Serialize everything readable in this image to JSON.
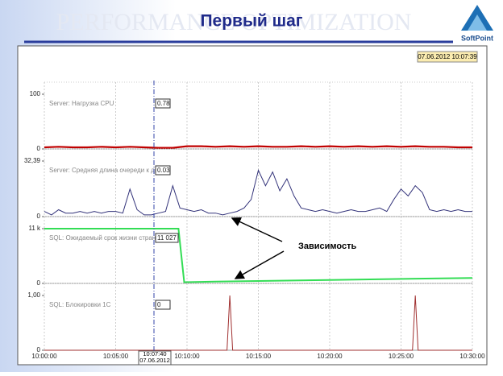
{
  "title": "Первый шаг",
  "watermark": "PERFORMANCE OPTIMIZATION",
  "logo": "SoftPoint",
  "timestamp": "07.06.2012 10:07:39",
  "cursor": {
    "time": "10:07:40",
    "date": "07.06.2012"
  },
  "annotation": "Зависимость",
  "chart_data": [
    {
      "type": "line",
      "xlim": [
        0,
        30
      ],
      "ylim": [
        0,
        100
      ],
      "yticks": [
        0,
        100
      ],
      "cursor_label": "0.78",
      "x": [
        0,
        1,
        2,
        3,
        4,
        5,
        6,
        7,
        8,
        9,
        10,
        11,
        12,
        13,
        14,
        15,
        16,
        17,
        18,
        19,
        20,
        21,
        22,
        23,
        24,
        25,
        26,
        27,
        28,
        29,
        30
      ],
      "series": [
        {
          "name": "Server: Нагрузка CPU",
          "color": "#c00000",
          "values": [
            3,
            4,
            3,
            3,
            4,
            3,
            4,
            3,
            2,
            2,
            5,
            5,
            4,
            5,
            4,
            5,
            4,
            4,
            5,
            4,
            5,
            4,
            5,
            4,
            5,
            4,
            5,
            4,
            4,
            3,
            3
          ]
        }
      ]
    },
    {
      "type": "line",
      "xlim": [
        0,
        30
      ],
      "ylim": [
        0,
        32.39
      ],
      "yticks": [
        0,
        {
          "value": 32.39,
          "label": "32,39"
        }
      ],
      "cursor_label": "0.03",
      "x": [
        0,
        0.5,
        1,
        1.5,
        2,
        2.5,
        3,
        3.5,
        4,
        4.5,
        5,
        5.5,
        6,
        6.5,
        7,
        7.5,
        8,
        8.5,
        9,
        9.5,
        10,
        10.5,
        11,
        11.5,
        12,
        12.5,
        13,
        13.5,
        14,
        14.5,
        15,
        15.5,
        16,
        16.5,
        17,
        17.5,
        18,
        18.5,
        19,
        19.5,
        20,
        20.5,
        21,
        21.5,
        22,
        22.5,
        23,
        23.5,
        24,
        24.5,
        25,
        25.5,
        26,
        26.5,
        27,
        27.5,
        28,
        28.5,
        29,
        29.5,
        30
      ],
      "series": [
        {
          "name": "Server: Средняя длина очереди к диску",
          "color": "#33337a",
          "values": [
            3,
            1,
            4,
            2,
            2,
            3,
            2,
            3,
            2,
            3,
            3,
            2,
            16,
            4,
            1,
            1,
            2,
            3,
            18,
            5,
            4,
            3,
            4,
            2,
            2,
            1,
            2,
            3,
            5,
            10,
            27,
            18,
            26,
            15,
            22,
            12,
            5,
            4,
            3,
            4,
            3,
            2,
            3,
            4,
            3,
            3,
            4,
            5,
            3,
            10,
            16,
            12,
            18,
            14,
            4,
            3,
            4,
            3,
            4,
            3,
            3
          ]
        }
      ]
    },
    {
      "type": "line",
      "xlim": [
        0,
        30
      ],
      "ylim": [
        0,
        11000
      ],
      "yticks": [
        0,
        {
          "value": 11000,
          "label": "11 k"
        }
      ],
      "cursor_label": "11 027",
      "x": [
        0,
        9.4,
        9.8,
        12,
        20,
        30
      ],
      "series": [
        {
          "name": "SQL: Ожидаемый срок жизни страницы",
          "color": "#33dd55",
          "values": [
            11000,
            11000,
            250,
            380,
            700,
            1100
          ]
        }
      ]
    },
    {
      "type": "line",
      "xlim": [
        0,
        30
      ],
      "ylim": [
        0,
        1
      ],
      "yticks": [
        0,
        {
          "value": 1,
          "label": "1,00"
        }
      ],
      "cursor_label": "0",
      "xticks": [
        {
          "value": 0,
          "label": "10:00:00"
        },
        {
          "value": 5,
          "label": "10:05:00"
        },
        {
          "value": 10,
          "label": "10:10:00"
        },
        {
          "value": 15,
          "label": "10:15:00"
        },
        {
          "value": 20,
          "label": "10:20:00"
        },
        {
          "value": 25,
          "label": "10:25:00"
        },
        {
          "value": 30,
          "label": "10:30:00"
        }
      ],
      "x": [
        0,
        12.8,
        13,
        13.2,
        25.8,
        26,
        26.2,
        30
      ],
      "series": [
        {
          "name": "SQL: Блокировки 1С",
          "color": "#a03030",
          "values": [
            0,
            0,
            1,
            0,
            0,
            1,
            0,
            0
          ]
        }
      ]
    }
  ]
}
